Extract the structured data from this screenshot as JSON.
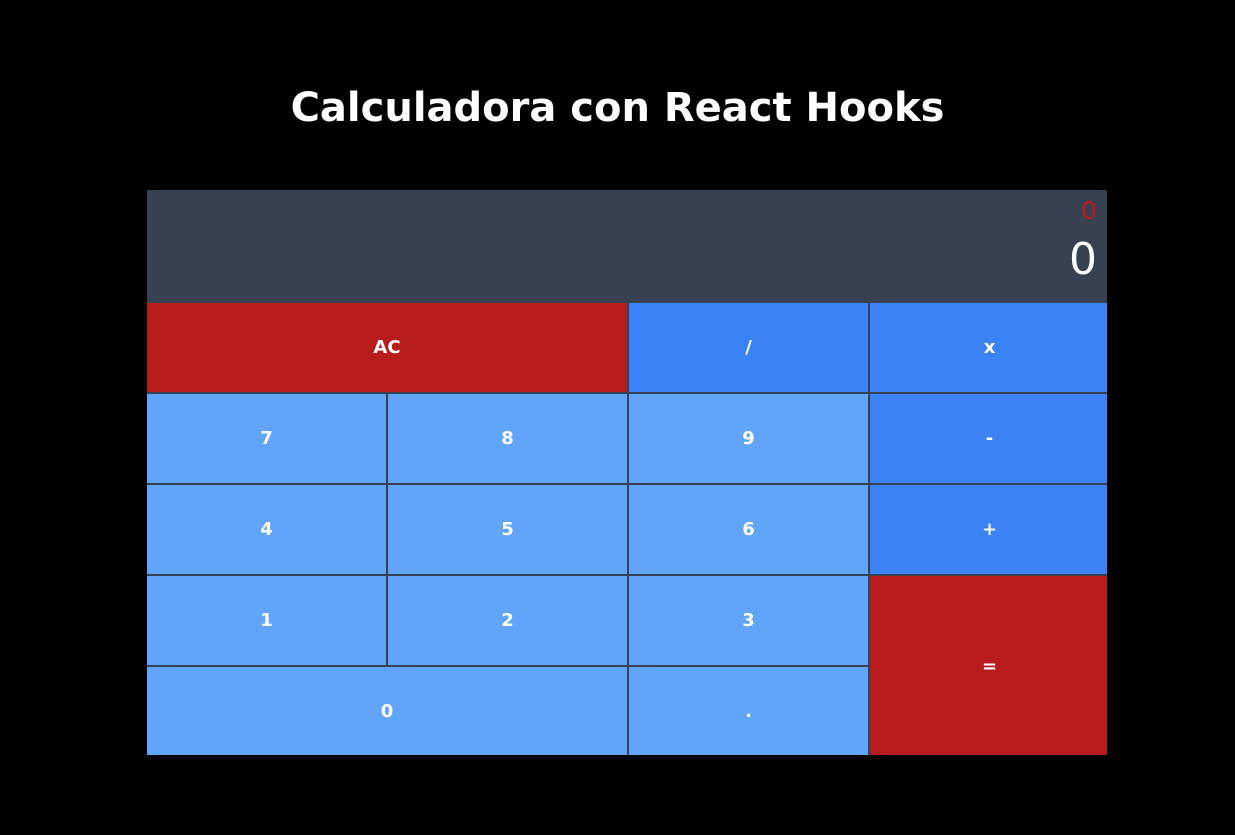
{
  "title": "Calculadora con React Hooks",
  "display": {
    "previous": "0",
    "current": "0"
  },
  "keys": {
    "clear": "AC",
    "divide": "/",
    "multiply": "x",
    "seven": "7",
    "eight": "8",
    "nine": "9",
    "subtract": "-",
    "four": "4",
    "five": "5",
    "six": "6",
    "add": "+",
    "one": "1",
    "two": "2",
    "three": "3",
    "equals": "=",
    "zero": "0",
    "decimal": "."
  },
  "colors": {
    "background": "#000000",
    "display": "#374151",
    "number_key": "#60a5fa",
    "operator_key": "#3b82f6",
    "action_key": "#b91c1c",
    "previous_value": "#b91c1c",
    "text": "#ffffff"
  }
}
